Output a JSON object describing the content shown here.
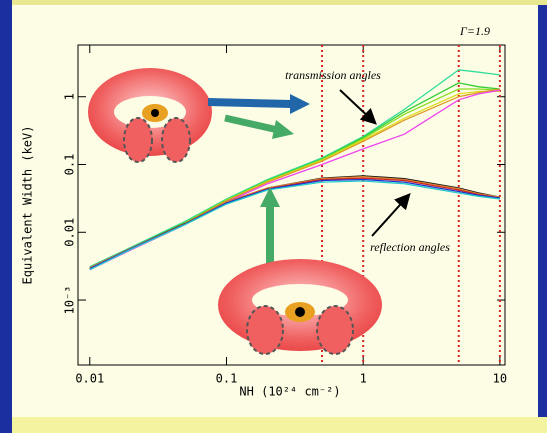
{
  "chart_data": {
    "type": "line",
    "gamma_label": "Γ=1.9",
    "annotations": [
      "transmission angles",
      "reflection angles"
    ],
    "x_label": "NH (10²⁴ cm⁻²)",
    "y_label": "Equivalent Width (keV)",
    "log_x": true,
    "log_y": true,
    "xlim": [
      0.0082,
      10.9
    ],
    "ylim": [
      0.00011,
      5.8
    ],
    "xticks": [
      0.01,
      0.1,
      1,
      10
    ],
    "yticks": [
      {
        "value": 0.001,
        "label": "10⁻³"
      },
      0.01,
      0.1,
      1
    ],
    "vlines": [
      0.5,
      1,
      5,
      10
    ],
    "x": [
      0.01,
      0.02,
      0.05,
      0.1,
      0.2,
      0.5,
      1,
      2,
      5,
      7,
      10
    ],
    "series": [
      {
        "color": "#33dd99",
        "values": [
          0.0031,
          0.006,
          0.0145,
          0.031,
          0.06,
          0.125,
          0.26,
          0.65,
          2.5,
          2.3,
          2.1
        ]
      },
      {
        "color": "#33cc33",
        "values": [
          0.003,
          0.0058,
          0.014,
          0.03,
          0.058,
          0.12,
          0.25,
          0.6,
          1.6,
          1.4,
          1.3
        ]
      },
      {
        "color": "#88dd22",
        "values": [
          0.0029,
          0.0057,
          0.0138,
          0.03,
          0.057,
          0.118,
          0.24,
          0.55,
          1.3,
          1.3,
          1.25
        ]
      },
      {
        "color": "#dddd22",
        "values": [
          0.0029,
          0.0056,
          0.0136,
          0.029,
          0.056,
          0.115,
          0.23,
          0.48,
          1.1,
          1.2,
          1.2
        ]
      },
      {
        "color": "#dd9922",
        "values": [
          0.0028,
          0.0056,
          0.0135,
          0.029,
          0.055,
          0.112,
          0.22,
          0.45,
          1.0,
          1.15,
          1.3
        ]
      },
      {
        "color": "#ee44ee",
        "values": [
          0.0028,
          0.0055,
          0.013,
          0.028,
          0.052,
          0.1,
          0.17,
          0.28,
          0.9,
          1.1,
          1.25
        ]
      },
      {
        "color": "#111111",
        "values": [
          0.003,
          0.0058,
          0.0135,
          0.028,
          0.045,
          0.063,
          0.068,
          0.062,
          0.045,
          0.038,
          0.033
        ]
      },
      {
        "color": "#dd8833",
        "values": [
          0.003,
          0.0058,
          0.0134,
          0.028,
          0.045,
          0.062,
          0.066,
          0.06,
          0.044,
          0.037,
          0.033
        ]
      },
      {
        "color": "#cc2222",
        "values": [
          0.0029,
          0.0057,
          0.0133,
          0.027,
          0.044,
          0.06,
          0.063,
          0.058,
          0.042,
          0.036,
          0.032
        ]
      },
      {
        "color": "#2233cc",
        "values": [
          0.0029,
          0.0057,
          0.0132,
          0.027,
          0.043,
          0.058,
          0.06,
          0.055,
          0.04,
          0.035,
          0.032
        ]
      },
      {
        "color": "#22cccc",
        "values": [
          0.0028,
          0.0056,
          0.013,
          0.026,
          0.042,
          0.055,
          0.057,
          0.052,
          0.038,
          0.034,
          0.031
        ]
      }
    ]
  }
}
